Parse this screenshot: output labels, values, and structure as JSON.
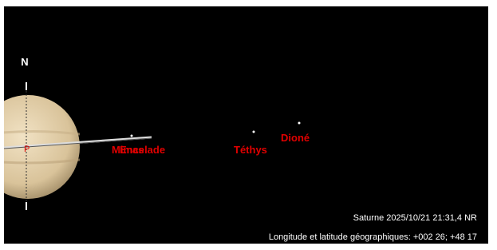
{
  "north": "N",
  "moons": [
    {
      "name": "Mimas"
    },
    {
      "name": "Encelade"
    },
    {
      "name": "Téthys"
    },
    {
      "name": "Dioné"
    }
  ],
  "footer": {
    "line1": "Saturne 2025/10/21 21:31,4 NR",
    "line2": "Longitude et latitude géographiques: +002 26; +48 17"
  }
}
